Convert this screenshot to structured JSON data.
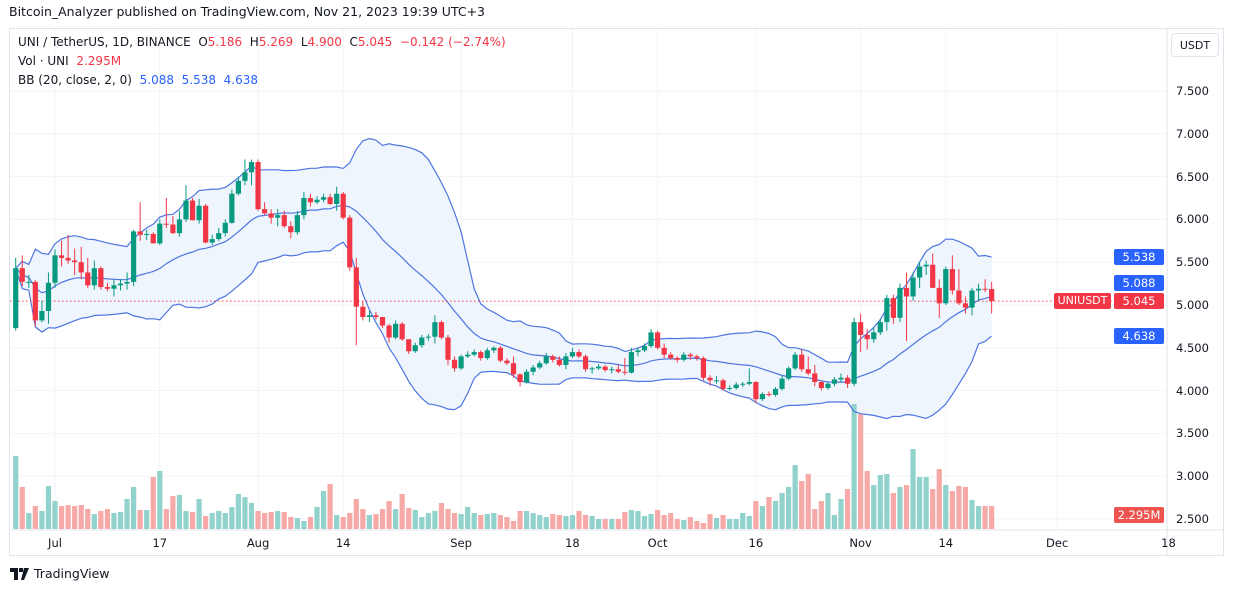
{
  "header": {
    "published": "Bitcoin_Analyzer published on TradingView.com, Nov 21, 2023 19:39 UTC+3"
  },
  "legend": {
    "symbol": "UNI / TetherUS, 1D, BINANCE",
    "o_label": "O",
    "o": "5.186",
    "h_label": "H",
    "h": "5.269",
    "l_label": "L",
    "l": "4.900",
    "c_label": "C",
    "c": "5.045",
    "change": "−0.142 (−2.74%)",
    "vol_label": "Vol · UNI",
    "vol": "2.295M",
    "bb_label": "BB (20, close, 2, 0)",
    "bb_basis": "5.088",
    "bb_upper": "5.538",
    "bb_lower": "4.638"
  },
  "currency_button": "USDT",
  "price_tags": {
    "symbol": "UNIUSDT",
    "last": "5.045",
    "bb_upper": "5.538",
    "bb_basis": "5.088",
    "bb_lower": "4.638",
    "volume": "2.295M"
  },
  "footer": {
    "brand": "TradingView"
  },
  "colors": {
    "up": "#089981",
    "down": "#f23645",
    "vol_up": "#92d2cc",
    "vol_down": "#f7a9a7",
    "bb_line": "#4f75e0",
    "bb_fill": "#eef5fd",
    "blue_tag": "#2962ff"
  },
  "chart_data": {
    "type": "candlestick",
    "symbol": "UNIUSDT",
    "interval": "1D",
    "y_ticks": [
      "7.500",
      "7.000",
      "6.500",
      "6.000",
      "5.500",
      "5.000",
      "4.500",
      "4.000",
      "3.500",
      "3.000",
      "2.500"
    ],
    "ylim": [
      2.5,
      7.5
    ],
    "x_ticks": [
      {
        "label": "Jul",
        "date": "2023-07-01"
      },
      {
        "label": "17",
        "date": "2023-07-17"
      },
      {
        "label": "Aug",
        "date": "2023-08-01"
      },
      {
        "label": "14",
        "date": "2023-08-14"
      },
      {
        "label": "Sep",
        "date": "2023-09-01"
      },
      {
        "label": "18",
        "date": "2023-09-18"
      },
      {
        "label": "Oct",
        "date": "2023-10-01"
      },
      {
        "label": "16",
        "date": "2023-10-16"
      },
      {
        "label": "Nov",
        "date": "2023-11-01"
      },
      {
        "label": "14",
        "date": "2023-11-14"
      },
      {
        "label": "Dec",
        "date": "2023-12-01"
      },
      {
        "label": "18",
        "date": "2023-12-18"
      }
    ],
    "grid": true,
    "indicator": "Bollinger Bands (20, close, 2)",
    "last_price": 5.045,
    "candles_fields": [
      "date",
      "open",
      "high",
      "low",
      "close"
    ],
    "candles": [
      [
        "2023-06-25",
        4.73,
        5.55,
        4.7,
        5.43
      ],
      [
        "2023-06-26",
        5.43,
        5.58,
        5.22,
        5.27
      ],
      [
        "2023-06-27",
        5.27,
        5.35,
        5.2,
        5.27
      ],
      [
        "2023-06-28",
        5.27,
        5.29,
        4.75,
        4.82
      ],
      [
        "2023-06-29",
        4.82,
        5.05,
        4.8,
        4.93
      ],
      [
        "2023-06-30",
        4.93,
        5.38,
        4.78,
        5.26
      ],
      [
        "2023-07-01",
        5.26,
        5.65,
        5.2,
        5.58
      ],
      [
        "2023-07-02",
        5.58,
        5.75,
        5.45,
        5.55
      ],
      [
        "2023-07-03",
        5.55,
        5.82,
        5.48,
        5.52
      ],
      [
        "2023-07-04",
        5.52,
        5.66,
        5.35,
        5.5
      ],
      [
        "2023-07-05",
        5.5,
        5.68,
        5.3,
        5.38
      ],
      [
        "2023-07-06",
        5.38,
        5.55,
        5.2,
        5.23
      ],
      [
        "2023-07-07",
        5.23,
        5.52,
        5.18,
        5.43
      ],
      [
        "2023-07-08",
        5.43,
        5.45,
        5.18,
        5.21
      ],
      [
        "2023-07-09",
        5.21,
        5.26,
        5.16,
        5.19
      ],
      [
        "2023-07-10",
        5.19,
        5.3,
        5.1,
        5.23
      ],
      [
        "2023-07-11",
        5.23,
        5.3,
        5.17,
        5.25
      ],
      [
        "2023-07-12",
        5.25,
        5.38,
        5.18,
        5.27
      ],
      [
        "2023-07-13",
        5.27,
        5.88,
        5.22,
        5.86
      ],
      [
        "2023-07-14",
        5.86,
        6.2,
        5.75,
        5.82
      ],
      [
        "2023-07-15",
        5.82,
        5.88,
        5.76,
        5.83
      ],
      [
        "2023-07-16",
        5.83,
        5.85,
        5.72,
        5.72
      ],
      [
        "2023-07-17",
        5.72,
        6.0,
        5.7,
        5.95
      ],
      [
        "2023-07-18",
        5.95,
        6.25,
        5.9,
        5.94
      ],
      [
        "2023-07-19",
        5.94,
        6.04,
        5.83,
        5.84
      ],
      [
        "2023-07-20",
        5.84,
        6.1,
        5.8,
        6.0
      ],
      [
        "2023-07-21",
        6.0,
        6.4,
        5.97,
        6.22
      ],
      [
        "2023-07-22",
        6.22,
        6.25,
        5.99,
        5.99
      ],
      [
        "2023-07-23",
        5.99,
        6.24,
        5.95,
        6.16
      ],
      [
        "2023-07-24",
        6.16,
        6.18,
        5.72,
        5.73
      ],
      [
        "2023-07-25",
        5.73,
        5.82,
        5.7,
        5.77
      ],
      [
        "2023-07-26",
        5.77,
        5.9,
        5.75,
        5.84
      ],
      [
        "2023-07-27",
        5.84,
        6.0,
        5.8,
        5.96
      ],
      [
        "2023-07-28",
        5.96,
        6.35,
        5.95,
        6.3
      ],
      [
        "2023-07-29",
        6.3,
        6.5,
        6.28,
        6.45
      ],
      [
        "2023-07-30",
        6.45,
        6.7,
        6.4,
        6.55
      ],
      [
        "2023-07-31",
        6.55,
        6.7,
        6.4,
        6.67
      ],
      [
        "2023-08-01",
        6.67,
        6.7,
        6.1,
        6.12
      ],
      [
        "2023-08-02",
        6.12,
        6.2,
        6.05,
        6.07
      ],
      [
        "2023-08-03",
        6.07,
        6.12,
        5.95,
        6.02
      ],
      [
        "2023-08-04",
        6.02,
        6.12,
        5.92,
        6.05
      ],
      [
        "2023-08-05",
        6.05,
        6.1,
        5.9,
        5.92
      ],
      [
        "2023-08-06",
        5.92,
        5.98,
        5.78,
        5.85
      ],
      [
        "2023-08-07",
        5.85,
        6.1,
        5.82,
        6.05
      ],
      [
        "2023-08-08",
        6.05,
        6.32,
        6.0,
        6.25
      ],
      [
        "2023-08-09",
        6.25,
        6.3,
        6.15,
        6.2
      ],
      [
        "2023-08-10",
        6.2,
        6.27,
        6.18,
        6.23
      ],
      [
        "2023-08-11",
        6.23,
        6.3,
        6.2,
        6.26
      ],
      [
        "2023-08-12",
        6.26,
        6.3,
        6.17,
        6.18
      ],
      [
        "2023-08-13",
        6.18,
        6.38,
        6.1,
        6.3
      ],
      [
        "2023-08-14",
        6.3,
        6.32,
        6.0,
        6.02
      ],
      [
        "2023-08-15",
        6.02,
        6.05,
        5.4,
        5.44
      ],
      [
        "2023-08-16",
        5.44,
        5.55,
        4.53,
        4.98
      ],
      [
        "2023-08-17",
        4.98,
        5.05,
        4.82,
        4.86
      ],
      [
        "2023-08-18",
        4.86,
        4.93,
        4.8,
        4.88
      ],
      [
        "2023-08-19",
        4.88,
        4.92,
        4.83,
        4.86
      ],
      [
        "2023-08-20",
        4.86,
        4.86,
        4.73,
        4.76
      ],
      [
        "2023-08-21",
        4.76,
        4.78,
        4.56,
        4.62
      ],
      [
        "2023-08-22",
        4.62,
        4.82,
        4.6,
        4.78
      ],
      [
        "2023-08-23",
        4.78,
        4.8,
        4.58,
        4.6
      ],
      [
        "2023-08-24",
        4.6,
        4.6,
        4.43,
        4.46
      ],
      [
        "2023-08-25",
        4.46,
        4.56,
        4.44,
        4.53
      ],
      [
        "2023-08-26",
        4.53,
        4.65,
        4.5,
        4.62
      ],
      [
        "2023-08-27",
        4.62,
        4.66,
        4.58,
        4.63
      ],
      [
        "2023-08-28",
        4.63,
        4.88,
        4.55,
        4.8
      ],
      [
        "2023-08-29",
        4.8,
        4.82,
        4.6,
        4.62
      ],
      [
        "2023-08-30",
        4.62,
        4.65,
        4.3,
        4.36
      ],
      [
        "2023-08-31",
        4.36,
        4.4,
        4.22,
        4.26
      ],
      [
        "2023-09-01",
        4.26,
        4.42,
        4.24,
        4.4
      ],
      [
        "2023-09-02",
        4.4,
        4.46,
        4.38,
        4.42
      ],
      [
        "2023-09-03",
        4.42,
        4.48,
        4.4,
        4.45
      ],
      [
        "2023-09-04",
        4.45,
        4.47,
        4.35,
        4.38
      ],
      [
        "2023-09-05",
        4.38,
        4.5,
        4.36,
        4.47
      ],
      [
        "2023-09-06",
        4.47,
        4.52,
        4.44,
        4.5
      ],
      [
        "2023-09-07",
        4.5,
        4.52,
        4.33,
        4.35
      ],
      [
        "2023-09-08",
        4.35,
        4.38,
        4.3,
        4.32
      ],
      [
        "2023-09-09",
        4.32,
        4.4,
        4.15,
        4.19
      ],
      [
        "2023-09-10",
        4.19,
        4.2,
        4.05,
        4.1
      ],
      [
        "2023-09-11",
        4.1,
        4.25,
        4.08,
        4.22
      ],
      [
        "2023-09-12",
        4.22,
        4.3,
        4.18,
        4.27
      ],
      [
        "2023-09-13",
        4.27,
        4.35,
        4.25,
        4.32
      ],
      [
        "2023-09-14",
        4.32,
        4.44,
        4.3,
        4.4
      ],
      [
        "2023-09-15",
        4.4,
        4.42,
        4.33,
        4.36
      ],
      [
        "2023-09-16",
        4.36,
        4.4,
        4.28,
        4.3
      ],
      [
        "2023-09-17",
        4.3,
        4.44,
        4.25,
        4.4
      ],
      [
        "2023-09-18",
        4.4,
        4.5,
        4.38,
        4.45
      ],
      [
        "2023-09-19",
        4.45,
        4.48,
        4.38,
        4.4
      ],
      [
        "2023-09-20",
        4.4,
        4.42,
        4.22,
        4.25
      ],
      [
        "2023-09-21",
        4.25,
        4.28,
        4.2,
        4.26
      ],
      [
        "2023-09-22",
        4.26,
        4.31,
        4.24,
        4.28
      ],
      [
        "2023-09-23",
        4.28,
        4.3,
        4.22,
        4.24
      ],
      [
        "2023-09-24",
        4.24,
        4.28,
        4.2,
        4.25
      ],
      [
        "2023-09-25",
        4.25,
        4.3,
        4.2,
        4.22
      ],
      [
        "2023-09-26",
        4.22,
        4.38,
        4.18,
        4.21
      ],
      [
        "2023-09-27",
        4.21,
        4.5,
        4.2,
        4.45
      ],
      [
        "2023-09-28",
        4.45,
        4.5,
        4.4,
        4.47
      ],
      [
        "2023-09-29",
        4.47,
        4.55,
        4.45,
        4.52
      ],
      [
        "2023-09-30",
        4.52,
        4.72,
        4.5,
        4.68
      ],
      [
        "2023-10-01",
        4.68,
        4.7,
        4.48,
        4.5
      ],
      [
        "2023-10-02",
        4.5,
        4.55,
        4.38,
        4.42
      ],
      [
        "2023-10-03",
        4.42,
        4.45,
        4.36,
        4.38
      ],
      [
        "2023-10-04",
        4.38,
        4.4,
        4.33,
        4.36
      ],
      [
        "2023-10-05",
        4.36,
        4.45,
        4.34,
        4.42
      ],
      [
        "2023-10-06",
        4.42,
        4.44,
        4.36,
        4.4
      ],
      [
        "2023-10-07",
        4.4,
        4.42,
        4.35,
        4.38
      ],
      [
        "2023-10-08",
        4.38,
        4.4,
        4.12,
        4.15
      ],
      [
        "2023-10-09",
        4.15,
        4.18,
        4.06,
        4.12
      ],
      [
        "2023-10-10",
        4.12,
        4.17,
        4.08,
        4.12
      ],
      [
        "2023-10-11",
        4.12,
        4.14,
        4.0,
        4.02
      ],
      [
        "2023-10-12",
        4.02,
        4.06,
        4.0,
        4.03
      ],
      [
        "2023-10-13",
        4.03,
        4.1,
        4.01,
        4.07
      ],
      [
        "2023-10-14",
        4.07,
        4.1,
        4.04,
        4.08
      ],
      [
        "2023-10-15",
        4.08,
        4.26,
        4.06,
        4.1
      ],
      [
        "2023-10-16",
        4.1,
        4.11,
        3.86,
        3.9
      ],
      [
        "2023-10-17",
        3.9,
        3.98,
        3.88,
        3.96
      ],
      [
        "2023-10-18",
        3.96,
        3.99,
        3.93,
        3.95
      ],
      [
        "2023-10-19",
        3.95,
        4.04,
        3.93,
        4.02
      ],
      [
        "2023-10-20",
        4.02,
        4.18,
        4.0,
        4.14
      ],
      [
        "2023-10-21",
        4.14,
        4.28,
        4.12,
        4.26
      ],
      [
        "2023-10-22",
        4.26,
        4.45,
        4.24,
        4.42
      ],
      [
        "2023-10-23",
        4.42,
        4.48,
        4.22,
        4.25
      ],
      [
        "2023-10-24",
        4.25,
        4.4,
        4.18,
        4.2
      ],
      [
        "2023-10-25",
        4.2,
        4.3,
        4.05,
        4.1
      ],
      [
        "2023-10-26",
        4.1,
        4.12,
        4.0,
        4.03
      ],
      [
        "2023-10-27",
        4.03,
        4.1,
        4.01,
        4.08
      ],
      [
        "2023-10-28",
        4.08,
        4.16,
        4.05,
        4.13
      ],
      [
        "2023-10-29",
        4.13,
        4.2,
        4.1,
        4.15
      ],
      [
        "2023-10-30",
        4.15,
        4.18,
        4.03,
        4.08
      ],
      [
        "2023-10-31",
        4.08,
        4.85,
        4.05,
        4.8
      ],
      [
        "2023-11-01",
        4.8,
        4.9,
        4.45,
        4.65
      ],
      [
        "2023-11-02",
        4.65,
        4.72,
        4.48,
        4.6
      ],
      [
        "2023-11-03",
        4.6,
        4.74,
        4.56,
        4.68
      ],
      [
        "2023-11-04",
        4.68,
        4.84,
        4.65,
        4.8
      ],
      [
        "2023-11-05",
        4.8,
        5.12,
        4.7,
        5.08
      ],
      [
        "2023-11-06",
        5.08,
        5.12,
        4.78,
        4.85
      ],
      [
        "2023-11-07",
        4.85,
        5.25,
        4.8,
        5.2
      ],
      [
        "2023-11-08",
        5.2,
        5.38,
        4.58,
        5.1
      ],
      [
        "2023-11-09",
        5.1,
        5.38,
        5.05,
        5.32
      ],
      [
        "2023-11-10",
        5.32,
        5.5,
        5.2,
        5.45
      ],
      [
        "2023-11-11",
        5.45,
        5.52,
        5.35,
        5.47
      ],
      [
        "2023-11-12",
        5.47,
        5.6,
        5.25,
        5.2
      ],
      [
        "2023-11-13",
        5.2,
        5.3,
        4.85,
        5.02
      ],
      [
        "2023-11-14",
        5.02,
        5.45,
        5.0,
        5.42
      ],
      [
        "2023-11-15",
        5.42,
        5.58,
        5.12,
        5.17
      ],
      [
        "2023-11-16",
        5.17,
        5.42,
        5.0,
        5.02
      ],
      [
        "2023-11-17",
        5.02,
        5.1,
        4.9,
        4.97
      ],
      [
        "2023-11-18",
        4.97,
        5.2,
        4.88,
        5.17
      ],
      [
        "2023-11-19",
        5.17,
        5.25,
        5.05,
        5.19
      ],
      [
        "2023-11-20",
        5.19,
        5.3,
        5.15,
        5.186
      ],
      [
        "2023-11-21",
        5.186,
        5.269,
        4.9,
        5.045
      ]
    ],
    "volume_unit": "M",
    "volume": [
      7.3,
      4.2,
      1.6,
      2.3,
      1.8,
      4.3,
      2.8,
      2.3,
      2.4,
      2.3,
      2.4,
      2.0,
      1.5,
      1.8,
      2.0,
      1.6,
      1.7,
      3.0,
      4.2,
      1.9,
      1.9,
      5.2,
      5.8,
      2.0,
      3.3,
      3.4,
      1.8,
      1.7,
      3.0,
      1.3,
      1.6,
      1.8,
      1.6,
      2.2,
      3.5,
      3.2,
      2.6,
      1.8,
      1.6,
      1.7,
      1.8,
      1.7,
      1.2,
      1.1,
      0.8,
      1.2,
      2.2,
      3.8,
      4.5,
      1.4,
      1.2,
      1.6,
      3.0,
      2.0,
      1.4,
      1.5,
      2.0,
      2.8,
      2.0,
      3.5,
      2.1,
      1.9,
      1.2,
      1.6,
      1.8,
      2.6,
      2.0,
      1.6,
      1.5,
      2.2,
      1.6,
      1.4,
      1.5,
      1.6,
      1.4,
      1.2,
      0.8,
      1.8,
      1.8,
      1.6,
      1.4,
      1.2,
      1.5,
      1.4,
      1.3,
      1.4,
      1.8,
      1.4,
      1.3,
      1.0,
      1.0,
      1.0,
      1.0,
      1.7,
      1.9,
      1.8,
      1.3,
      1.5,
      1.9,
      1.4,
      1.6,
      1.0,
      0.9,
      1.2,
      0.8,
      0.6,
      1.5,
      1.1,
      1.4,
      1.0,
      1.0,
      1.6,
      1.3,
      2.8,
      2.3,
      3.2,
      2.8,
      3.6,
      4.2,
      6.4,
      4.8,
      5.5,
      2.0,
      2.8,
      3.6,
      1.4,
      3.0,
      4.0,
      12.5,
      11.5,
      5.8,
      4.4,
      5.4,
      5.5,
      3.6,
      4.2,
      4.4,
      8.0,
      5.2,
      5.2,
      4.0,
      6.0,
      4.4,
      3.8,
      4.3,
      4.2,
      2.9,
      2.3,
      2.3,
      2.295
    ]
  }
}
